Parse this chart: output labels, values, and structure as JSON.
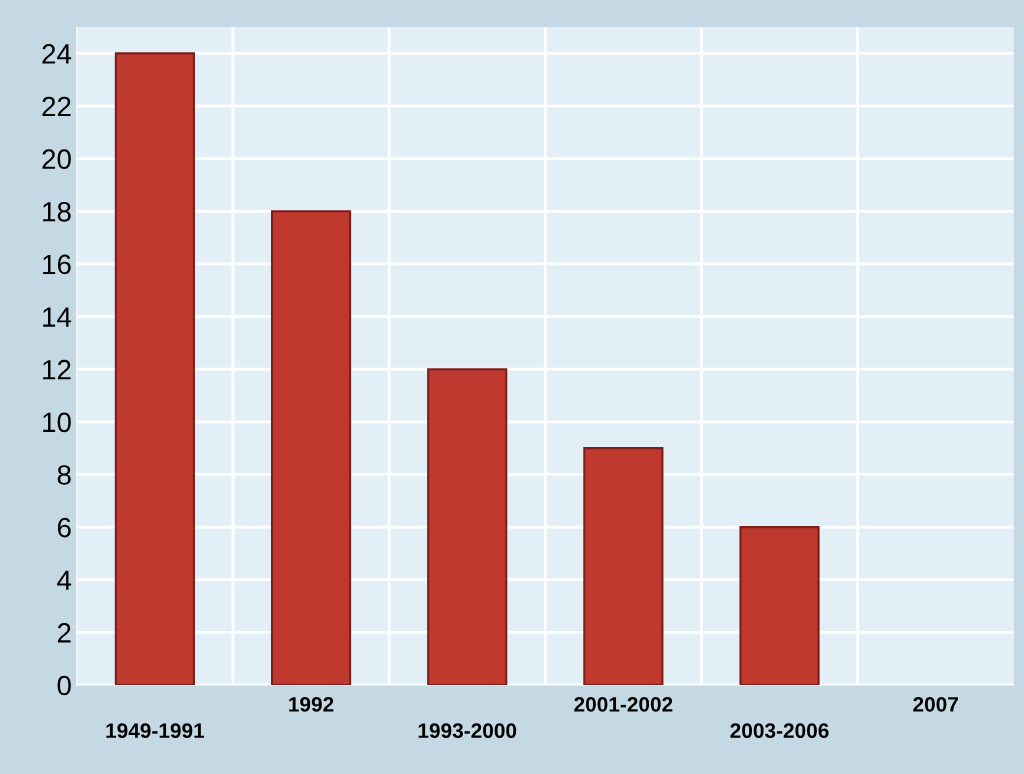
{
  "chart_data": {
    "type": "bar",
    "categories": [
      "1949-1991",
      "1992",
      "1993-2000",
      "2001-2002",
      "2003-2006",
      "2007"
    ],
    "values": [
      24,
      18,
      12,
      9,
      6,
      0
    ],
    "color": "#c0392f",
    "ylim": [
      0,
      25
    ],
    "yticks": [
      0,
      2,
      4,
      6,
      8,
      10,
      12,
      14,
      16,
      18,
      20,
      22,
      24
    ],
    "grid": true
  }
}
